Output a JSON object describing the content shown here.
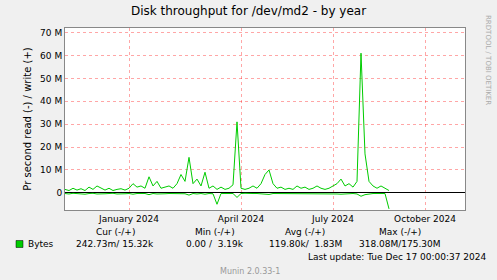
{
  "chart_data": {
    "type": "line",
    "title": "Disk throughput for /dev/md2 - by year",
    "y_label": "Pr second read (-) / write (+)",
    "categories": [
      null,
      null,
      null,
      null,
      null,
      null,
      null,
      null,
      null,
      null,
      null,
      null,
      null,
      null,
      null,
      null,
      "January 2024",
      null,
      null,
      null,
      null,
      null,
      null,
      null,
      null,
      null,
      null,
      null,
      null,
      null,
      null,
      null,
      null,
      null,
      null,
      null,
      null,
      null,
      null,
      null,
      null,
      null,
      null,
      null,
      "April 2024",
      null,
      null,
      null,
      null,
      null,
      null,
      null,
      null,
      null,
      null,
      null,
      null,
      null,
      null,
      null,
      null,
      null,
      null,
      null,
      null,
      null,
      null,
      "July 2024",
      null,
      null,
      null,
      null,
      null,
      null,
      null,
      null,
      null,
      null,
      null,
      null,
      null,
      null,
      null,
      null,
      null,
      null,
      null,
      null,
      null,
      null,
      "October 2024",
      null,
      null,
      null,
      null,
      null,
      null,
      null,
      null,
      null
    ],
    "series": [
      {
        "name": "Bytes",
        "color": "#00cc00",
        "values": [
          1500000,
          1000000,
          2000000,
          1200000,
          1800000,
          1000000,
          2500000,
          1500000,
          3000000,
          2000000,
          1200000,
          2000000,
          1000000,
          1500000,
          1800000,
          1200000,
          2000000,
          4000000,
          2500000,
          3000000,
          2000000,
          7000000,
          3000000,
          5000000,
          2000000,
          2500000,
          3000000,
          2000000,
          4000000,
          8000000,
          5000000,
          15500000,
          4000000,
          6000000,
          3000000,
          9000000,
          2000000,
          3000000,
          1500000,
          2500000,
          1500000,
          2000000,
          3500000,
          31000000,
          2000000,
          1500000,
          2000000,
          3000000,
          2000000,
          4000000,
          8000000,
          10000000,
          4000000,
          2000000,
          2500000,
          1500000,
          2000000,
          1500000,
          3000000,
          2000000,
          2500000,
          1500000,
          2000000,
          3000000,
          2000000,
          1500000,
          2000000,
          3000000,
          4000000,
          6000000,
          3000000,
          4000000,
          2500000,
          5000000,
          61000000,
          17000000,
          5000000,
          3000000,
          2000000,
          3000000,
          2000000,
          1000000,
          null,
          null,
          null,
          null,
          null,
          null,
          null,
          null,
          null,
          null,
          null,
          null,
          null,
          null,
          null,
          null,
          null,
          null
        ]
      },
      {
        "color": "#00cc00",
        "values": [
          -300000,
          -500000,
          -200000,
          -400000,
          -300000,
          -600000,
          -300000,
          -200000,
          -500000,
          -300000,
          -400000,
          -300000,
          -200000,
          -500000,
          -300000,
          -400000,
          -300000,
          -600000,
          -300000,
          -400000,
          -300000,
          -800000,
          -300000,
          -500000,
          -300000,
          -400000,
          -300000,
          -300000,
          -500000,
          -600000,
          -400000,
          -1000000,
          -300000,
          -500000,
          -300000,
          -600000,
          -300000,
          -400000,
          -5000000,
          -300000,
          -300000,
          -400000,
          -300000,
          -2000000,
          -300000,
          -200000,
          -400000,
          -300000,
          -300000,
          -500000,
          -600000,
          -700000,
          -300000,
          -300000,
          -400000,
          -200000,
          -300000,
          -300000,
          -400000,
          -300000,
          -300000,
          -200000,
          -400000,
          -300000,
          -300000,
          -200000,
          -300000,
          -400000,
          -500000,
          -600000,
          -400000,
          -500000,
          -300000,
          -500000,
          -1500000,
          -800000,
          -400000,
          -300000,
          -300000,
          -400000,
          -300000,
          -7000000,
          null,
          null,
          null,
          null,
          null,
          null,
          null,
          null,
          null,
          null,
          null,
          null,
          null,
          null,
          null,
          null,
          null,
          null
        ]
      }
    ],
    "ylim": [
      -7500000,
      72000000
    ],
    "yticks": [
      0,
      {
        "value": 10000000,
        "label": "10 M"
      },
      {
        "value": 20000000,
        "label": "20 M"
      },
      {
        "value": 30000000,
        "label": "30 M"
      },
      {
        "value": 40000000,
        "label": "40 M"
      },
      {
        "value": 50000000,
        "label": "50 M"
      },
      {
        "value": 60000000,
        "label": "60 M"
      },
      {
        "value": 70000000,
        "label": "70 M"
      }
    ],
    "grid": true,
    "summary": {
      "columns": [
        "Cur (-/+)",
        "Min (-/+)",
        "Avg (-/+)",
        "Max (-/+)"
      ],
      "values": [
        "242.73m/ 15.32k",
        "0.00 /  3.19k",
        "119.80k/  1.83M",
        "318.08M/175.30M"
      ],
      "last_update": "Last update: Tue Dec 17 00:00:37 2024",
      "version": "Munin 2.0.33-1",
      "watermark": "RRDTOOL / TOBI OETIKER"
    }
  }
}
